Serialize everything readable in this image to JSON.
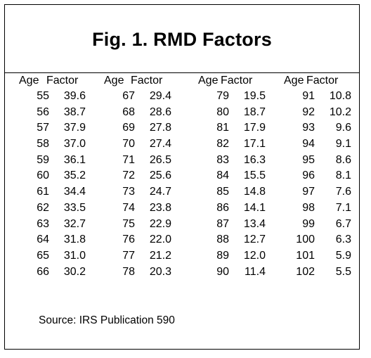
{
  "title": "Fig. 1.  RMD Factors",
  "headers": {
    "age": "Age",
    "factor": "Factor"
  },
  "columns": [
    {
      "ages": [
        "55",
        "56",
        "57",
        "58",
        "59",
        "60",
        "61",
        "62",
        "63",
        "64",
        "65",
        "66"
      ],
      "factors": [
        "39.6",
        "38.7",
        "37.9",
        "37.0",
        "36.1",
        "35.2",
        "34.4",
        "33.5",
        "32.7",
        "31.8",
        "31.0",
        "30.2"
      ]
    },
    {
      "ages": [
        "67",
        "68",
        "69",
        "70",
        "71",
        "72",
        "73",
        "74",
        "75",
        "76",
        "77",
        "78"
      ],
      "factors": [
        "29.4",
        "28.6",
        "27.8",
        "27.4",
        "26.5",
        "25.6",
        "24.7",
        "23.8",
        "22.9",
        "22.0",
        "21.2",
        "20.3"
      ]
    },
    {
      "ages": [
        "79",
        "80",
        "81",
        "82",
        "83",
        "84",
        "85",
        "86",
        "87",
        "88",
        "89",
        "90"
      ],
      "factors": [
        "19.5",
        "18.7",
        "17.9",
        "17.1",
        "16.3",
        "15.5",
        "14.8",
        "14.1",
        "13.4",
        "12.7",
        "12.0",
        "11.4"
      ]
    },
    {
      "ages": [
        "91",
        "92",
        "93",
        "94",
        "95",
        "96",
        "97",
        "98",
        "99",
        "100",
        "101",
        "102"
      ],
      "factors": [
        "10.8",
        "10.2",
        "9.6",
        "9.1",
        "8.6",
        "8.1",
        "7.6",
        "7.1",
        "6.7",
        "6.3",
        "5.9",
        "5.5"
      ]
    }
  ],
  "source": "Source:  IRS Publication 590"
}
